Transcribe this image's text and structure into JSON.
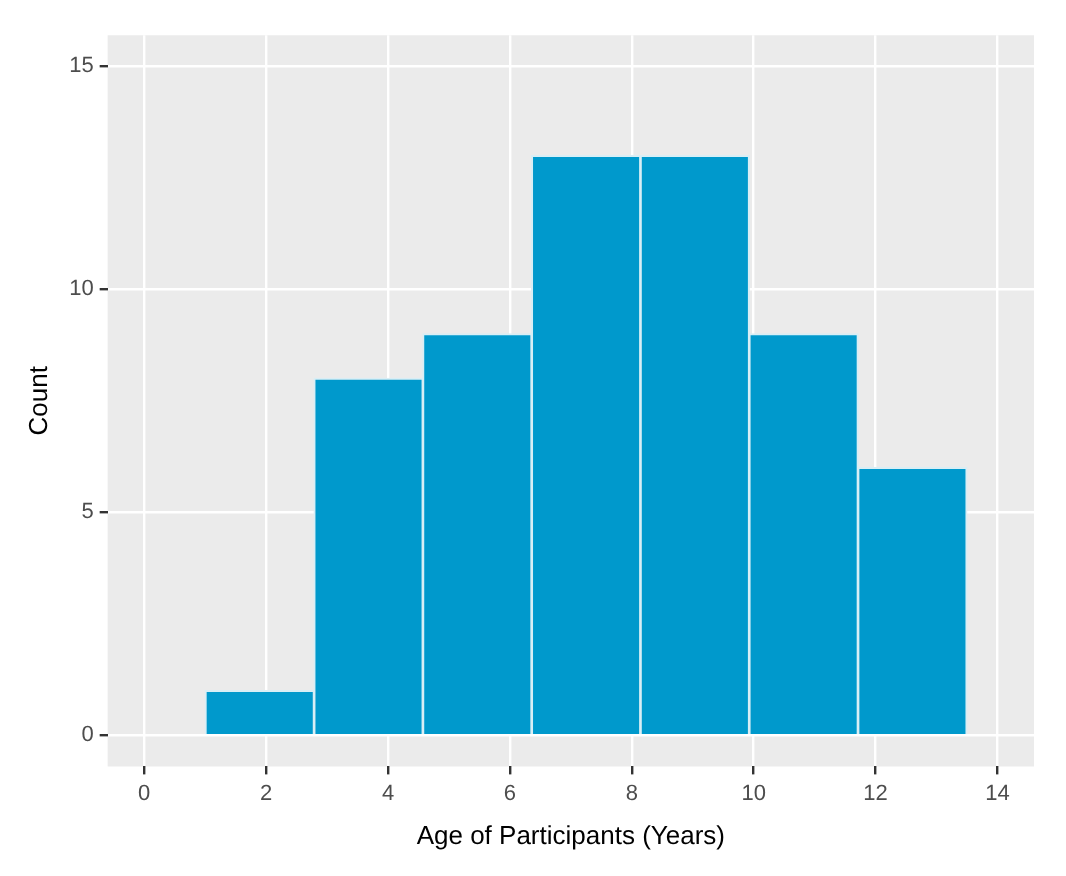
{
  "chart_data": {
    "type": "histogram",
    "xlabel": "Age of Participants (Years)",
    "ylabel": "Count",
    "bins": [
      1,
      2.79,
      4.57,
      6.36,
      8.14,
      9.93,
      11.71,
      13.5
    ],
    "values": [
      1,
      8,
      9,
      13,
      13,
      9,
      6
    ],
    "color": "#0099cc",
    "xlim": [
      -0.6,
      14.6
    ],
    "xticks": [
      0,
      2,
      4,
      6,
      8,
      10,
      12,
      14
    ],
    "ylim": [
      -0.7,
      15.7
    ],
    "yticks": [
      0,
      5,
      10,
      15
    ],
    "grid": true
  }
}
